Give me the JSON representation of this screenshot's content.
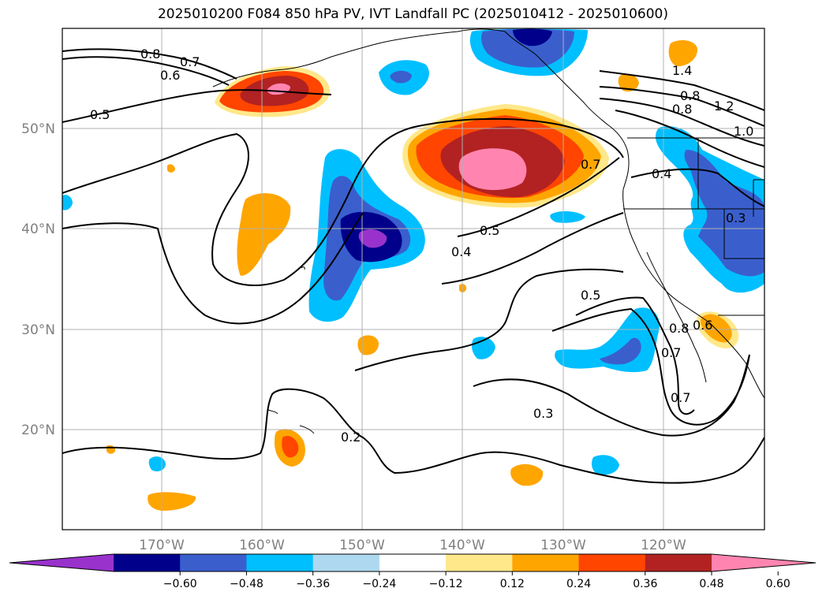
{
  "title": "2025010200 F084 850 hPa PV, IVT Landfall PC (2025010412 - 2025010600)",
  "lat_labels": [
    "50°N",
    "40°N",
    "30°N",
    "20°N"
  ],
  "lon_labels": [
    "170°W",
    "160°W",
    "150°W",
    "140°W",
    "130°W",
    "120°W"
  ],
  "colorbar": {
    "colors": [
      "#9932cc",
      "#00008b",
      "#3a5fcd",
      "#00bfff",
      "#add8f0",
      "#ffffff",
      "#ffe88a",
      "#ffa500",
      "#ff4500",
      "#b22222",
      "#ff85b0"
    ],
    "tick_labels": [
      "−0.60",
      "−0.48",
      "−0.36",
      "−0.24",
      "−0.12",
      "0.12",
      "0.24",
      "0.36",
      "0.48",
      "0.60"
    ]
  },
  "contour_labels": [
    {
      "text": "0.8"
    },
    {
      "text": "0.7"
    },
    {
      "text": "0.6"
    },
    {
      "text": "0.5"
    },
    {
      "text": "1.4"
    },
    {
      "text": "1.2"
    },
    {
      "text": "1.0"
    },
    {
      "text": "0.8"
    },
    {
      "text": "0.8"
    },
    {
      "text": "0.4"
    },
    {
      "text": "0.7"
    },
    {
      "text": "0.5"
    },
    {
      "text": "0.4"
    },
    {
      "text": "0.3"
    },
    {
      "text": "0.5"
    },
    {
      "text": "0.8"
    },
    {
      "text": "0.7"
    },
    {
      "text": "0.6"
    },
    {
      "text": "0.7"
    },
    {
      "text": "0.3"
    },
    {
      "text": "0.2"
    }
  ]
}
